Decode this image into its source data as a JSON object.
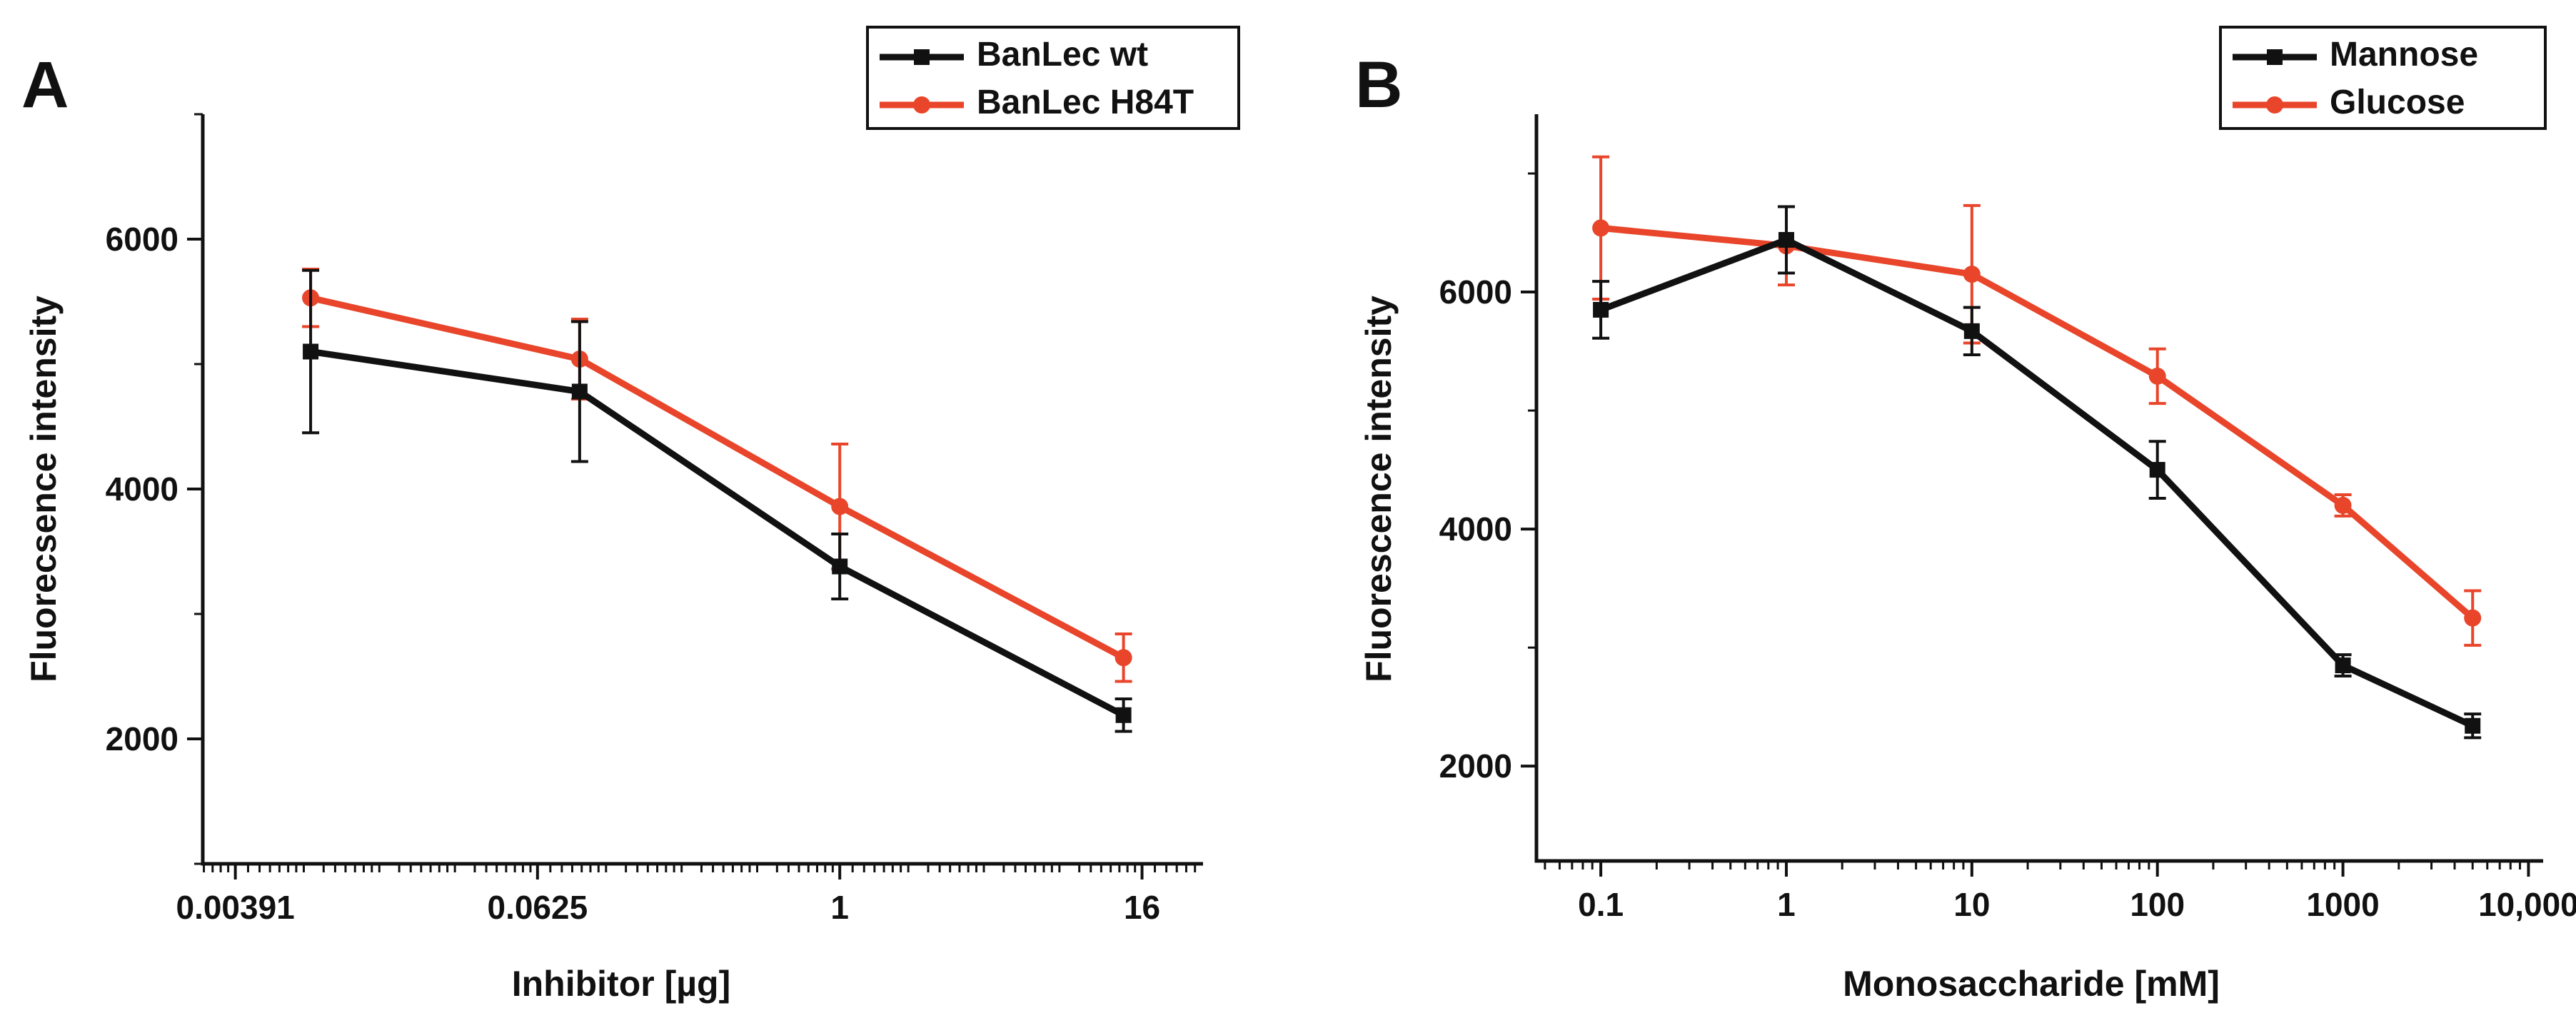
{
  "chart_data": [
    {
      "panel_label": "A",
      "type": "line",
      "xscale": "log2",
      "xlabel": "Inhibitor [µg]",
      "ylabel": "Fluorecsence intensity",
      "xlim": [
        0.0029,
        28
      ],
      "ylim": [
        1000,
        7000
      ],
      "x_ticks": [
        0.00391,
        0.0625,
        1,
        16
      ],
      "x_tick_labels": [
        "0.00391",
        "0.0625",
        "1",
        "16"
      ],
      "y_ticks": [
        2000,
        4000,
        6000
      ],
      "y_tick_labels": [
        "2000",
        "4000",
        "6000"
      ],
      "legend_position": "top-right",
      "series": [
        {
          "name": "BanLec wt",
          "color": "#111111",
          "marker": "square",
          "x": [
            0.0078,
            0.092,
            1,
            13.5
          ],
          "y": [
            5100,
            4780,
            3380,
            2190
          ],
          "err": [
            650,
            560,
            260,
            130
          ]
        },
        {
          "name": "BanLec H84T",
          "color": "#e8452b",
          "marker": "circle",
          "x": [
            0.0078,
            0.092,
            1,
            13.5
          ],
          "y": [
            5530,
            5040,
            3860,
            2650
          ],
          "err": [
            230,
            320,
            500,
            190
          ]
        }
      ]
    },
    {
      "panel_label": "B",
      "type": "line",
      "xscale": "log10",
      "xlabel": "Monosaccharide [mM]",
      "ylabel": "Fluorescence intensity",
      "xlim": [
        0.045,
        12000
      ],
      "ylim": [
        1200,
        7500
      ],
      "x_ticks": [
        0.1,
        1,
        10,
        100,
        1000,
        10000
      ],
      "x_tick_labels": [
        "0.1",
        "1",
        "10",
        "100",
        "1000",
        "10,000"
      ],
      "y_ticks": [
        2000,
        4000,
        6000
      ],
      "y_tick_labels": [
        "2000",
        "4000",
        "6000"
      ],
      "legend_position": "top-right",
      "series": [
        {
          "name": "Mannose",
          "color": "#111111",
          "marker": "square",
          "x": [
            0.1,
            1,
            10,
            100,
            1000,
            5000
          ],
          "y": [
            5850,
            6440,
            5670,
            4500,
            2850,
            2340
          ],
          "err": [
            240,
            280,
            200,
            240,
            90,
            100
          ]
        },
        {
          "name": "Glucose",
          "color": "#e8452b",
          "marker": "circle",
          "x": [
            0.1,
            1,
            10,
            100,
            1000,
            5000
          ],
          "y": [
            6540,
            6390,
            6150,
            5290,
            4200,
            3250
          ],
          "err": [
            600,
            330,
            580,
            230,
            90,
            230
          ]
        }
      ]
    }
  ]
}
